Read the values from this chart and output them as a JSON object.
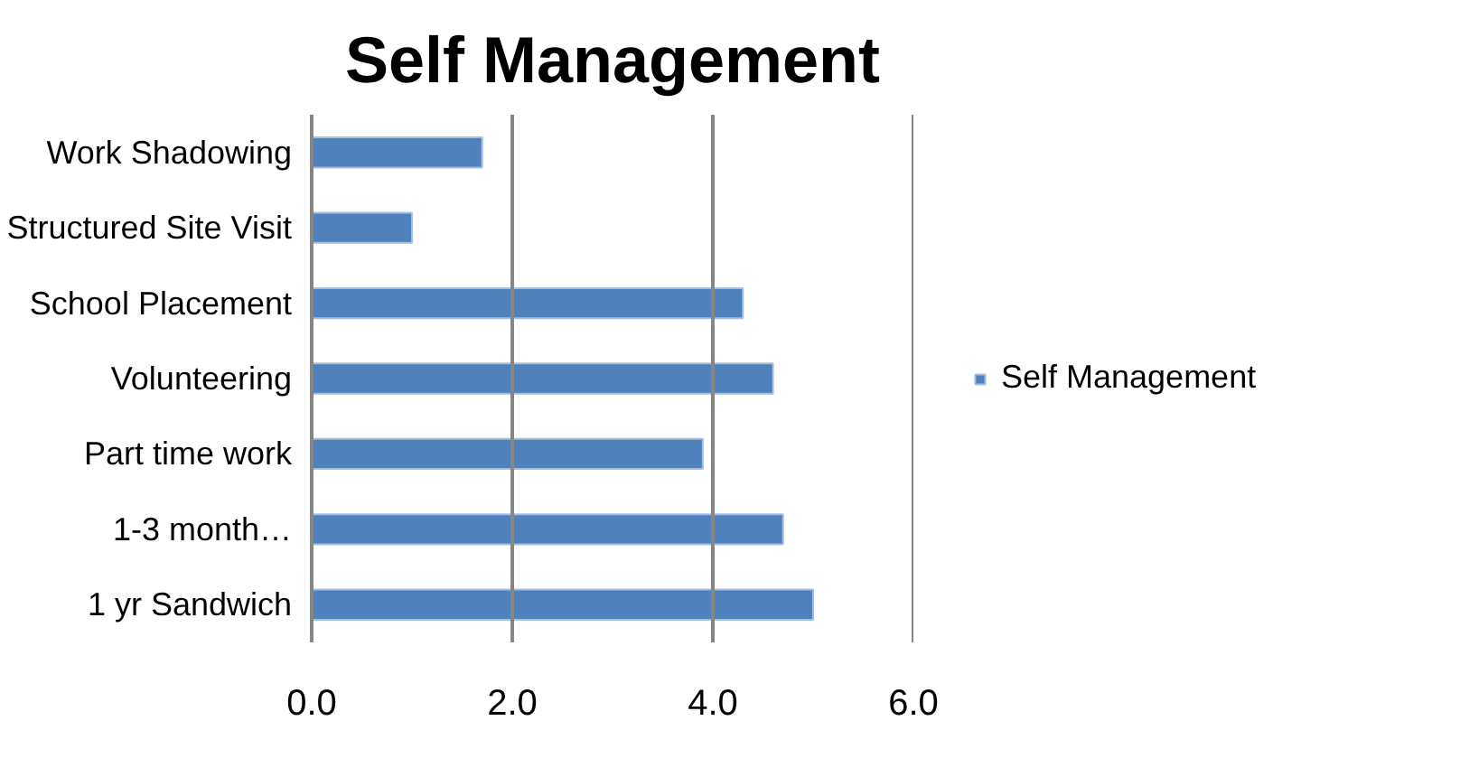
{
  "chart_data": {
    "type": "bar",
    "orientation": "horizontal",
    "title": "Self Management",
    "categories": [
      "Work Shadowing",
      "Structured Site Visit",
      "School Placement",
      "Volunteering",
      "Part time work",
      "1-3 month…",
      "1 yr Sandwich"
    ],
    "series": [
      {
        "name": "Self Management",
        "color": "#4f81bd",
        "values": [
          1.7,
          1.0,
          4.3,
          4.6,
          3.9,
          4.7,
          5.0
        ]
      }
    ],
    "xlim": [
      0,
      6
    ],
    "xticks": [
      {
        "value": 0,
        "label": "0.0"
      },
      {
        "value": 2,
        "label": "2.0"
      },
      {
        "value": 4,
        "label": "4.0"
      },
      {
        "value": 6,
        "label": "6.0"
      }
    ],
    "grid": "x",
    "legend": "right"
  }
}
